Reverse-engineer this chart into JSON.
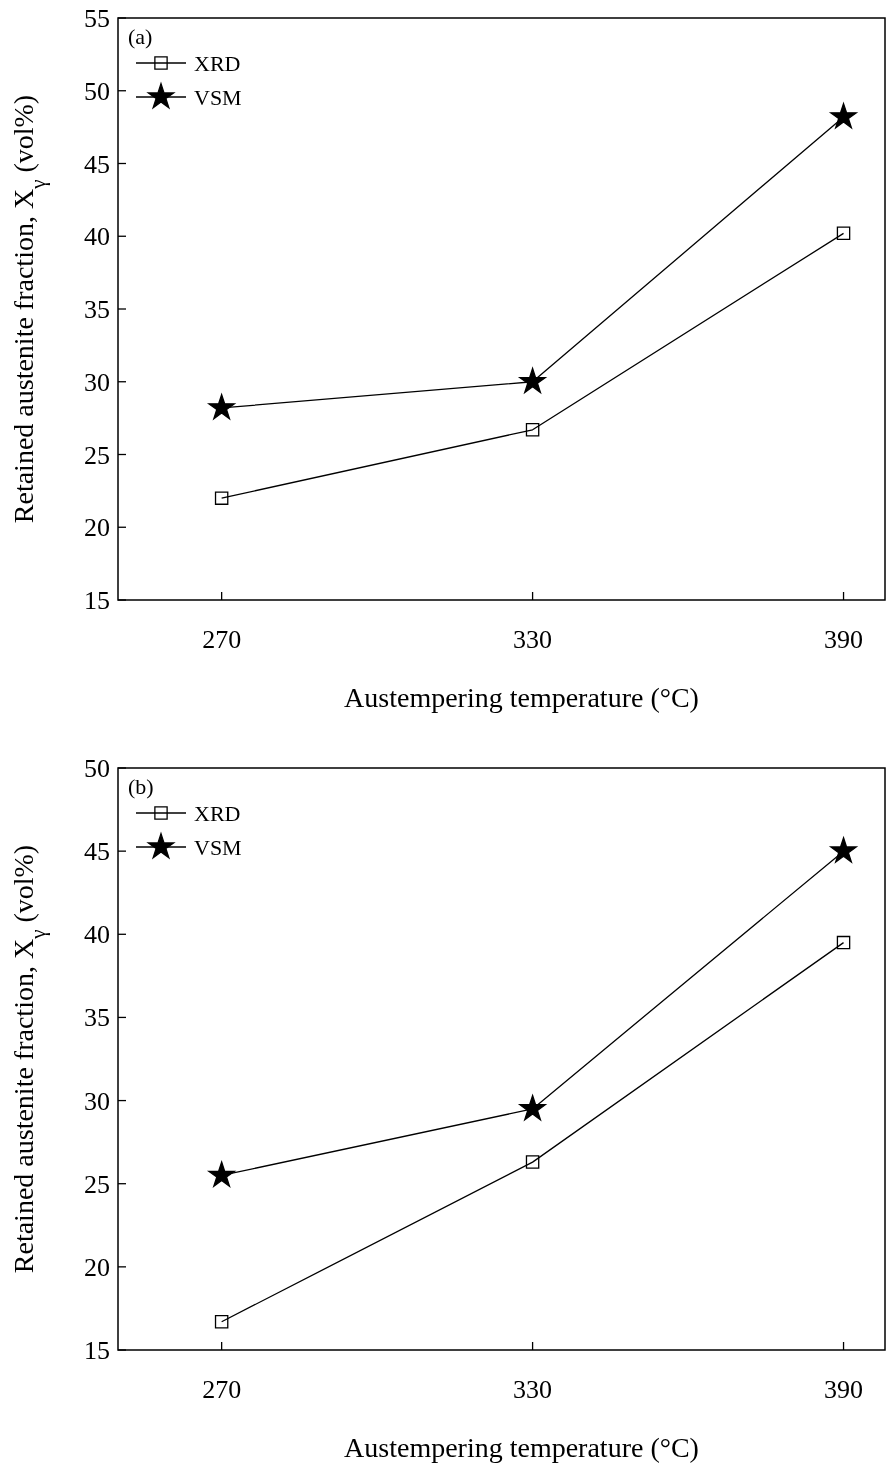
{
  "chart_data": [
    {
      "type": "line",
      "annotations": [
        "(a)"
      ],
      "xlabel": "Austempering temperature (°C)",
      "ylabel": "Retained austenite fraction, X$_{γ}$ (vol%)",
      "x": [
        270,
        330,
        390
      ],
      "xlim": [
        250,
        398
      ],
      "xticks": [
        270,
        330,
        390
      ],
      "ylim": [
        15,
        55
      ],
      "yticks": [
        15,
        20,
        25,
        30,
        35,
        40,
        45,
        50,
        55
      ],
      "legend": "top left",
      "grid": false,
      "series": [
        {
          "name": "XRD",
          "color": "#000000",
          "marker": "square",
          "values": [
            22.0,
            26.7,
            40.2
          ]
        },
        {
          "name": "VSM",
          "color": "#000000",
          "marker": "star",
          "values": [
            28.2,
            30.0,
            48.2
          ]
        }
      ]
    },
    {
      "type": "line",
      "annotations": [
        "(b)"
      ],
      "xlabel": "Austempering temperature (°C)",
      "ylabel": "Retained austenite fraction, X$_{γ}$ (vol%)",
      "x": [
        270,
        330,
        390
      ],
      "xlim": [
        250,
        398
      ],
      "xticks": [
        270,
        330,
        390
      ],
      "ylim": [
        15,
        50
      ],
      "yticks": [
        15,
        20,
        25,
        30,
        35,
        40,
        45,
        50
      ],
      "legend": "top left",
      "grid": false,
      "series": [
        {
          "name": "XRD",
          "color": "#000000",
          "marker": "square",
          "values": [
            16.7,
            26.3,
            39.5
          ]
        },
        {
          "name": "VSM",
          "color": "#000000",
          "marker": "star",
          "values": [
            25.5,
            29.5,
            45.0
          ]
        }
      ]
    }
  ]
}
